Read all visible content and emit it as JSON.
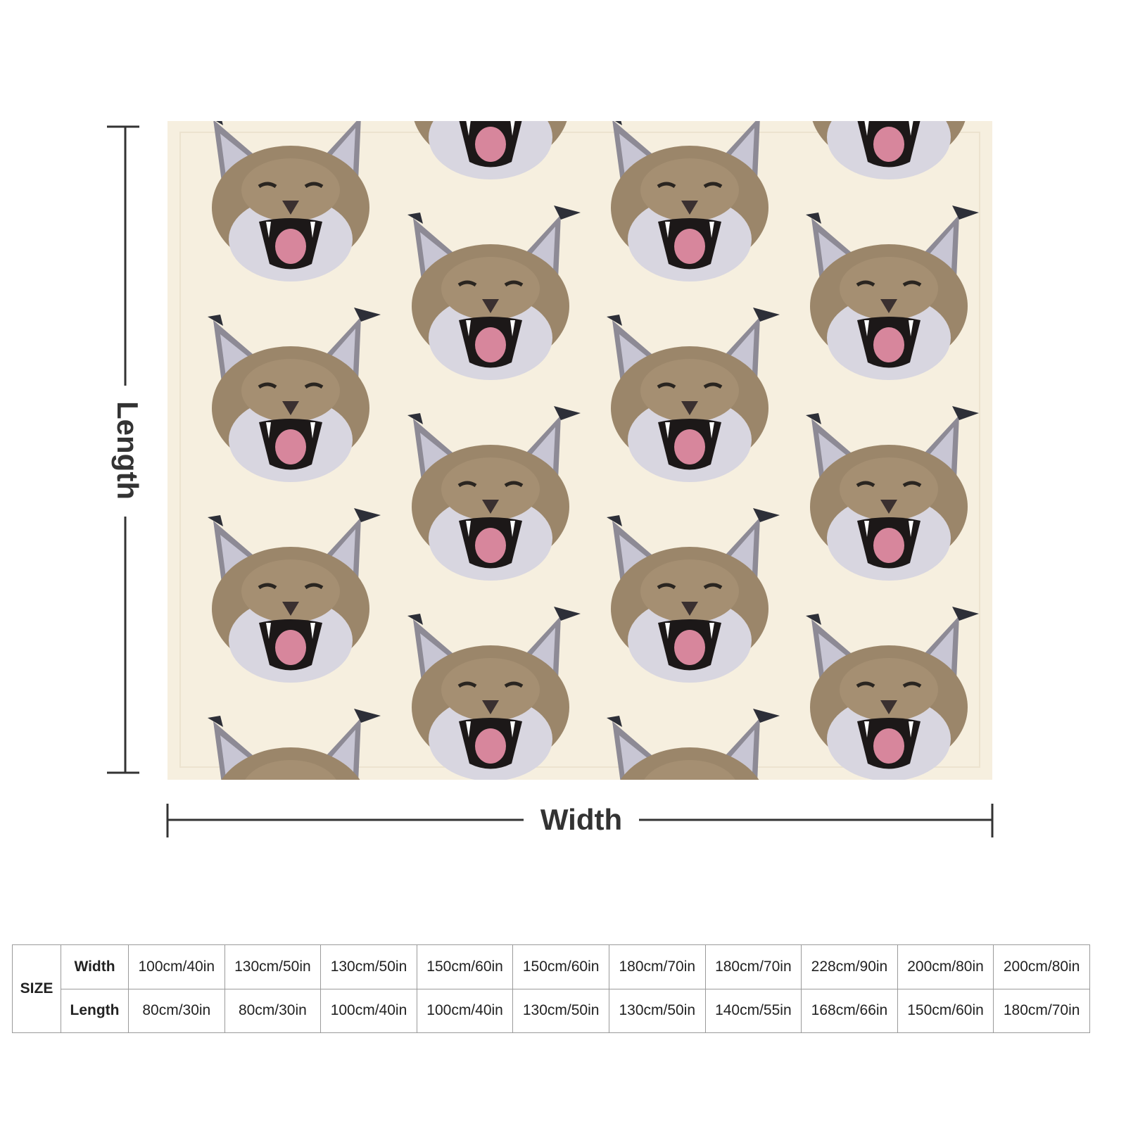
{
  "dimensions": {
    "length_label": "Length",
    "width_label": "Width"
  },
  "size_table": {
    "header": "SIZE",
    "rows": [
      {
        "label": "Width",
        "cells": [
          "100cm/40in",
          "130cm/50in",
          "130cm/50in",
          "150cm/60in",
          "150cm/60in",
          "180cm/70in",
          "180cm/70in",
          "228cm/90in",
          "200cm/80in",
          "200cm/80in"
        ]
      },
      {
        "label": "Length",
        "cells": [
          "80cm/30in",
          "80cm/30in",
          "100cm/40in",
          "100cm/40in",
          "130cm/50in",
          "130cm/50in",
          "140cm/55in",
          "168cm/66in",
          "150cm/60in",
          "180cm/70in"
        ]
      }
    ]
  }
}
